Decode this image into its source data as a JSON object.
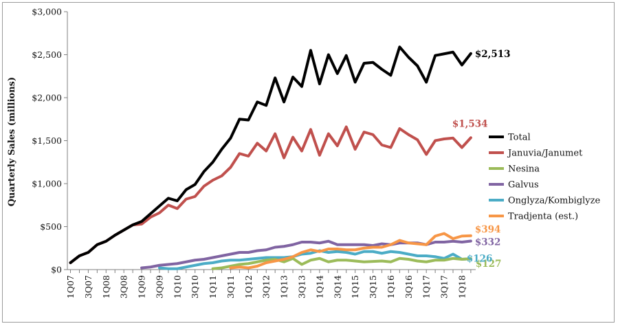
{
  "chart_data": {
    "type": "line",
    "title": "",
    "ylabel": "Quarterly Sales (millions)",
    "xlabel": "",
    "ylim": [
      0,
      3000
    ],
    "yticks": [
      0,
      500,
      1000,
      1500,
      2000,
      2500,
      3000
    ],
    "ytick_labels": [
      "$0",
      "$500",
      "$1,000",
      "$1,500",
      "$2,000",
      "$2,500",
      "$3,000"
    ],
    "categories": [
      "1Q07",
      "2Q07",
      "3Q07",
      "4Q07",
      "1Q08",
      "2Q08",
      "3Q08",
      "4Q08",
      "1Q09",
      "2Q09",
      "3Q09",
      "4Q09",
      "1Q10",
      "2Q10",
      "3Q10",
      "4Q10",
      "1Q11",
      "2Q11",
      "3Q11",
      "4Q11",
      "1Q12",
      "2Q12",
      "3Q12",
      "4Q12",
      "1Q13",
      "2Q13",
      "3Q13",
      "4Q13",
      "1Q14",
      "2Q14",
      "3Q14",
      "4Q14",
      "1Q15",
      "2Q15",
      "3Q15",
      "4Q15",
      "1Q16",
      "2Q16",
      "3Q16",
      "4Q16",
      "1Q17",
      "2Q17",
      "3Q17",
      "4Q17",
      "1Q18",
      "2Q18"
    ],
    "xtick_labels": [
      "1Q07",
      "",
      "3Q07",
      "",
      "1Q08",
      "",
      "3Q08",
      "",
      "1Q09",
      "",
      "3Q09",
      "",
      "1Q10",
      "",
      "3Q10",
      "",
      "1Q11",
      "",
      "3Q11",
      "",
      "1Q12",
      "",
      "3Q12",
      "",
      "1Q13",
      "",
      "3Q13",
      "",
      "1Q14",
      "",
      "3Q14",
      "",
      "1Q15",
      "",
      "3Q15",
      "",
      "1Q16",
      "",
      "3Q16",
      "",
      "1Q17",
      "",
      "3Q17",
      "",
      "1Q18",
      ""
    ],
    "legend_position": "right",
    "grid": false,
    "series": [
      {
        "name": "Total",
        "color": "#000000",
        "end_label": "$2,513",
        "end_label_color": "#000000",
        "values": [
          80,
          160,
          200,
          290,
          330,
          400,
          460,
          520,
          560,
          650,
          740,
          830,
          800,
          930,
          990,
          1140,
          1250,
          1400,
          1530,
          1750,
          1740,
          1950,
          1910,
          2230,
          1950,
          2240,
          2130,
          2550,
          2160,
          2500,
          2280,
          2490,
          2180,
          2400,
          2410,
          2330,
          2260,
          2590,
          2470,
          2370,
          2180,
          2490,
          2510,
          2530,
          2380,
          2513
        ]
      },
      {
        "name": "Januvia/Janumet",
        "color": "#c0504d",
        "end_label": "$1,534",
        "end_label_color": "#c0504d",
        "values": [
          80,
          160,
          200,
          290,
          330,
          400,
          460,
          520,
          530,
          610,
          660,
          750,
          710,
          820,
          850,
          970,
          1040,
          1090,
          1190,
          1350,
          1320,
          1470,
          1380,
          1580,
          1300,
          1540,
          1380,
          1630,
          1330,
          1580,
          1440,
          1660,
          1400,
          1600,
          1570,
          1450,
          1420,
          1640,
          1570,
          1510,
          1340,
          1500,
          1520,
          1530,
          1420,
          1534
        ]
      },
      {
        "name": "Nesina",
        "color": "#9bbb59",
        "end_label": "$127",
        "end_label_color": "#9bbb59",
        "values": [
          null,
          null,
          null,
          null,
          null,
          null,
          null,
          null,
          null,
          null,
          null,
          null,
          null,
          null,
          null,
          null,
          10,
          20,
          40,
          60,
          70,
          90,
          110,
          120,
          90,
          130,
          60,
          110,
          130,
          90,
          110,
          110,
          100,
          90,
          95,
          100,
          90,
          130,
          120,
          100,
          90,
          110,
          110,
          130,
          120,
          127
        ]
      },
      {
        "name": "Galvus",
        "color": "#8064a2",
        "end_label": "$332",
        "end_label_color": "#8064a2",
        "values": [
          null,
          null,
          null,
          null,
          null,
          null,
          null,
          null,
          20,
          30,
          50,
          60,
          70,
          90,
          110,
          120,
          140,
          160,
          180,
          200,
          200,
          220,
          230,
          260,
          270,
          290,
          320,
          320,
          310,
          330,
          290,
          290,
          290,
          290,
          280,
          300,
          290,
          310,
          310,
          310,
          290,
          320,
          320,
          330,
          320,
          332
        ]
      },
      {
        "name": "Onglyza/Kombiglyze",
        "color": "#4bacc6",
        "end_label": "$126",
        "end_label_color": "#4bacc6",
        "values": [
          null,
          null,
          null,
          null,
          null,
          null,
          null,
          null,
          null,
          null,
          20,
          10,
          10,
          30,
          50,
          70,
          80,
          100,
          110,
          110,
          120,
          130,
          140,
          140,
          140,
          150,
          180,
          190,
          220,
          200,
          210,
          200,
          180,
          210,
          210,
          190,
          210,
          200,
          180,
          160,
          160,
          150,
          130,
          180,
          120,
          126
        ]
      },
      {
        "name": "Tradjenta (est.)",
        "color": "#f79646",
        "end_label": "$394",
        "end_label_color": "#f79646",
        "values": [
          null,
          null,
          null,
          null,
          null,
          null,
          null,
          null,
          null,
          null,
          null,
          null,
          null,
          null,
          null,
          null,
          null,
          null,
          20,
          30,
          20,
          40,
          80,
          100,
          120,
          150,
          200,
          230,
          210,
          240,
          240,
          230,
          230,
          250,
          260,
          260,
          290,
          340,
          310,
          300,
          290,
          390,
          420,
          360,
          390,
          394
        ]
      }
    ]
  }
}
